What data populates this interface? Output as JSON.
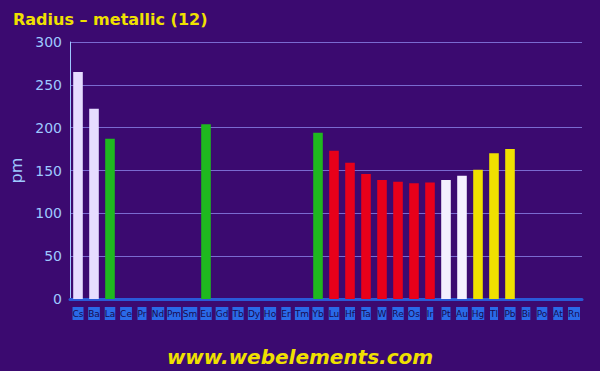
{
  "chart_data": {
    "type": "bar",
    "title": "Radius – metallic (12)",
    "y_label": "pm",
    "annotations": [
      "www.webelements.com"
    ],
    "categories": [
      "Cs",
      "Ba",
      "La",
      "Ce",
      "Pr",
      "Nd",
      "Pm",
      "Sm",
      "Eu",
      "Gd",
      "Tb",
      "Dy",
      "Ho",
      "Er",
      "Tm",
      "Yb",
      "Lu",
      "Hf",
      "Ta",
      "W",
      "Re",
      "Os",
      "Ir",
      "Pt",
      "Au",
      "Hg",
      "Tl",
      "Pb",
      "Bi",
      "Po",
      "At",
      "Rn"
    ],
    "values": [
      265,
      222,
      187,
      null,
      null,
      null,
      null,
      null,
      204,
      null,
      null,
      null,
      null,
      null,
      null,
      194,
      173,
      159,
      146,
      139,
      137,
      135,
      136,
      139,
      144,
      151,
      170,
      175,
      null,
      null,
      null,
      null
    ],
    "colors": [
      "#e6ddff",
      "#e6ddff",
      "#1fb81f",
      "#1fb81f",
      "#1fb81f",
      "#1fb81f",
      "#1fb81f",
      "#1fb81f",
      "#1fb81f",
      "#1fb81f",
      "#1fb81f",
      "#1fb81f",
      "#1fb81f",
      "#1fb81f",
      "#1fb81f",
      "#1fb81f",
      "#e8001a",
      "#e8001a",
      "#e8001a",
      "#e8001a",
      "#e8001a",
      "#e8001a",
      "#e8001a",
      "#f4f0ff",
      "#f4f0ff",
      "#f0e000",
      "#f0e000",
      "#f0e000",
      "#f0e000",
      "#f0e000",
      "#f0e000",
      "#f0e000"
    ],
    "ylim": [
      0,
      300
    ],
    "yticks": [
      0,
      50,
      100,
      150,
      200,
      250,
      300
    ],
    "grid": true
  }
}
